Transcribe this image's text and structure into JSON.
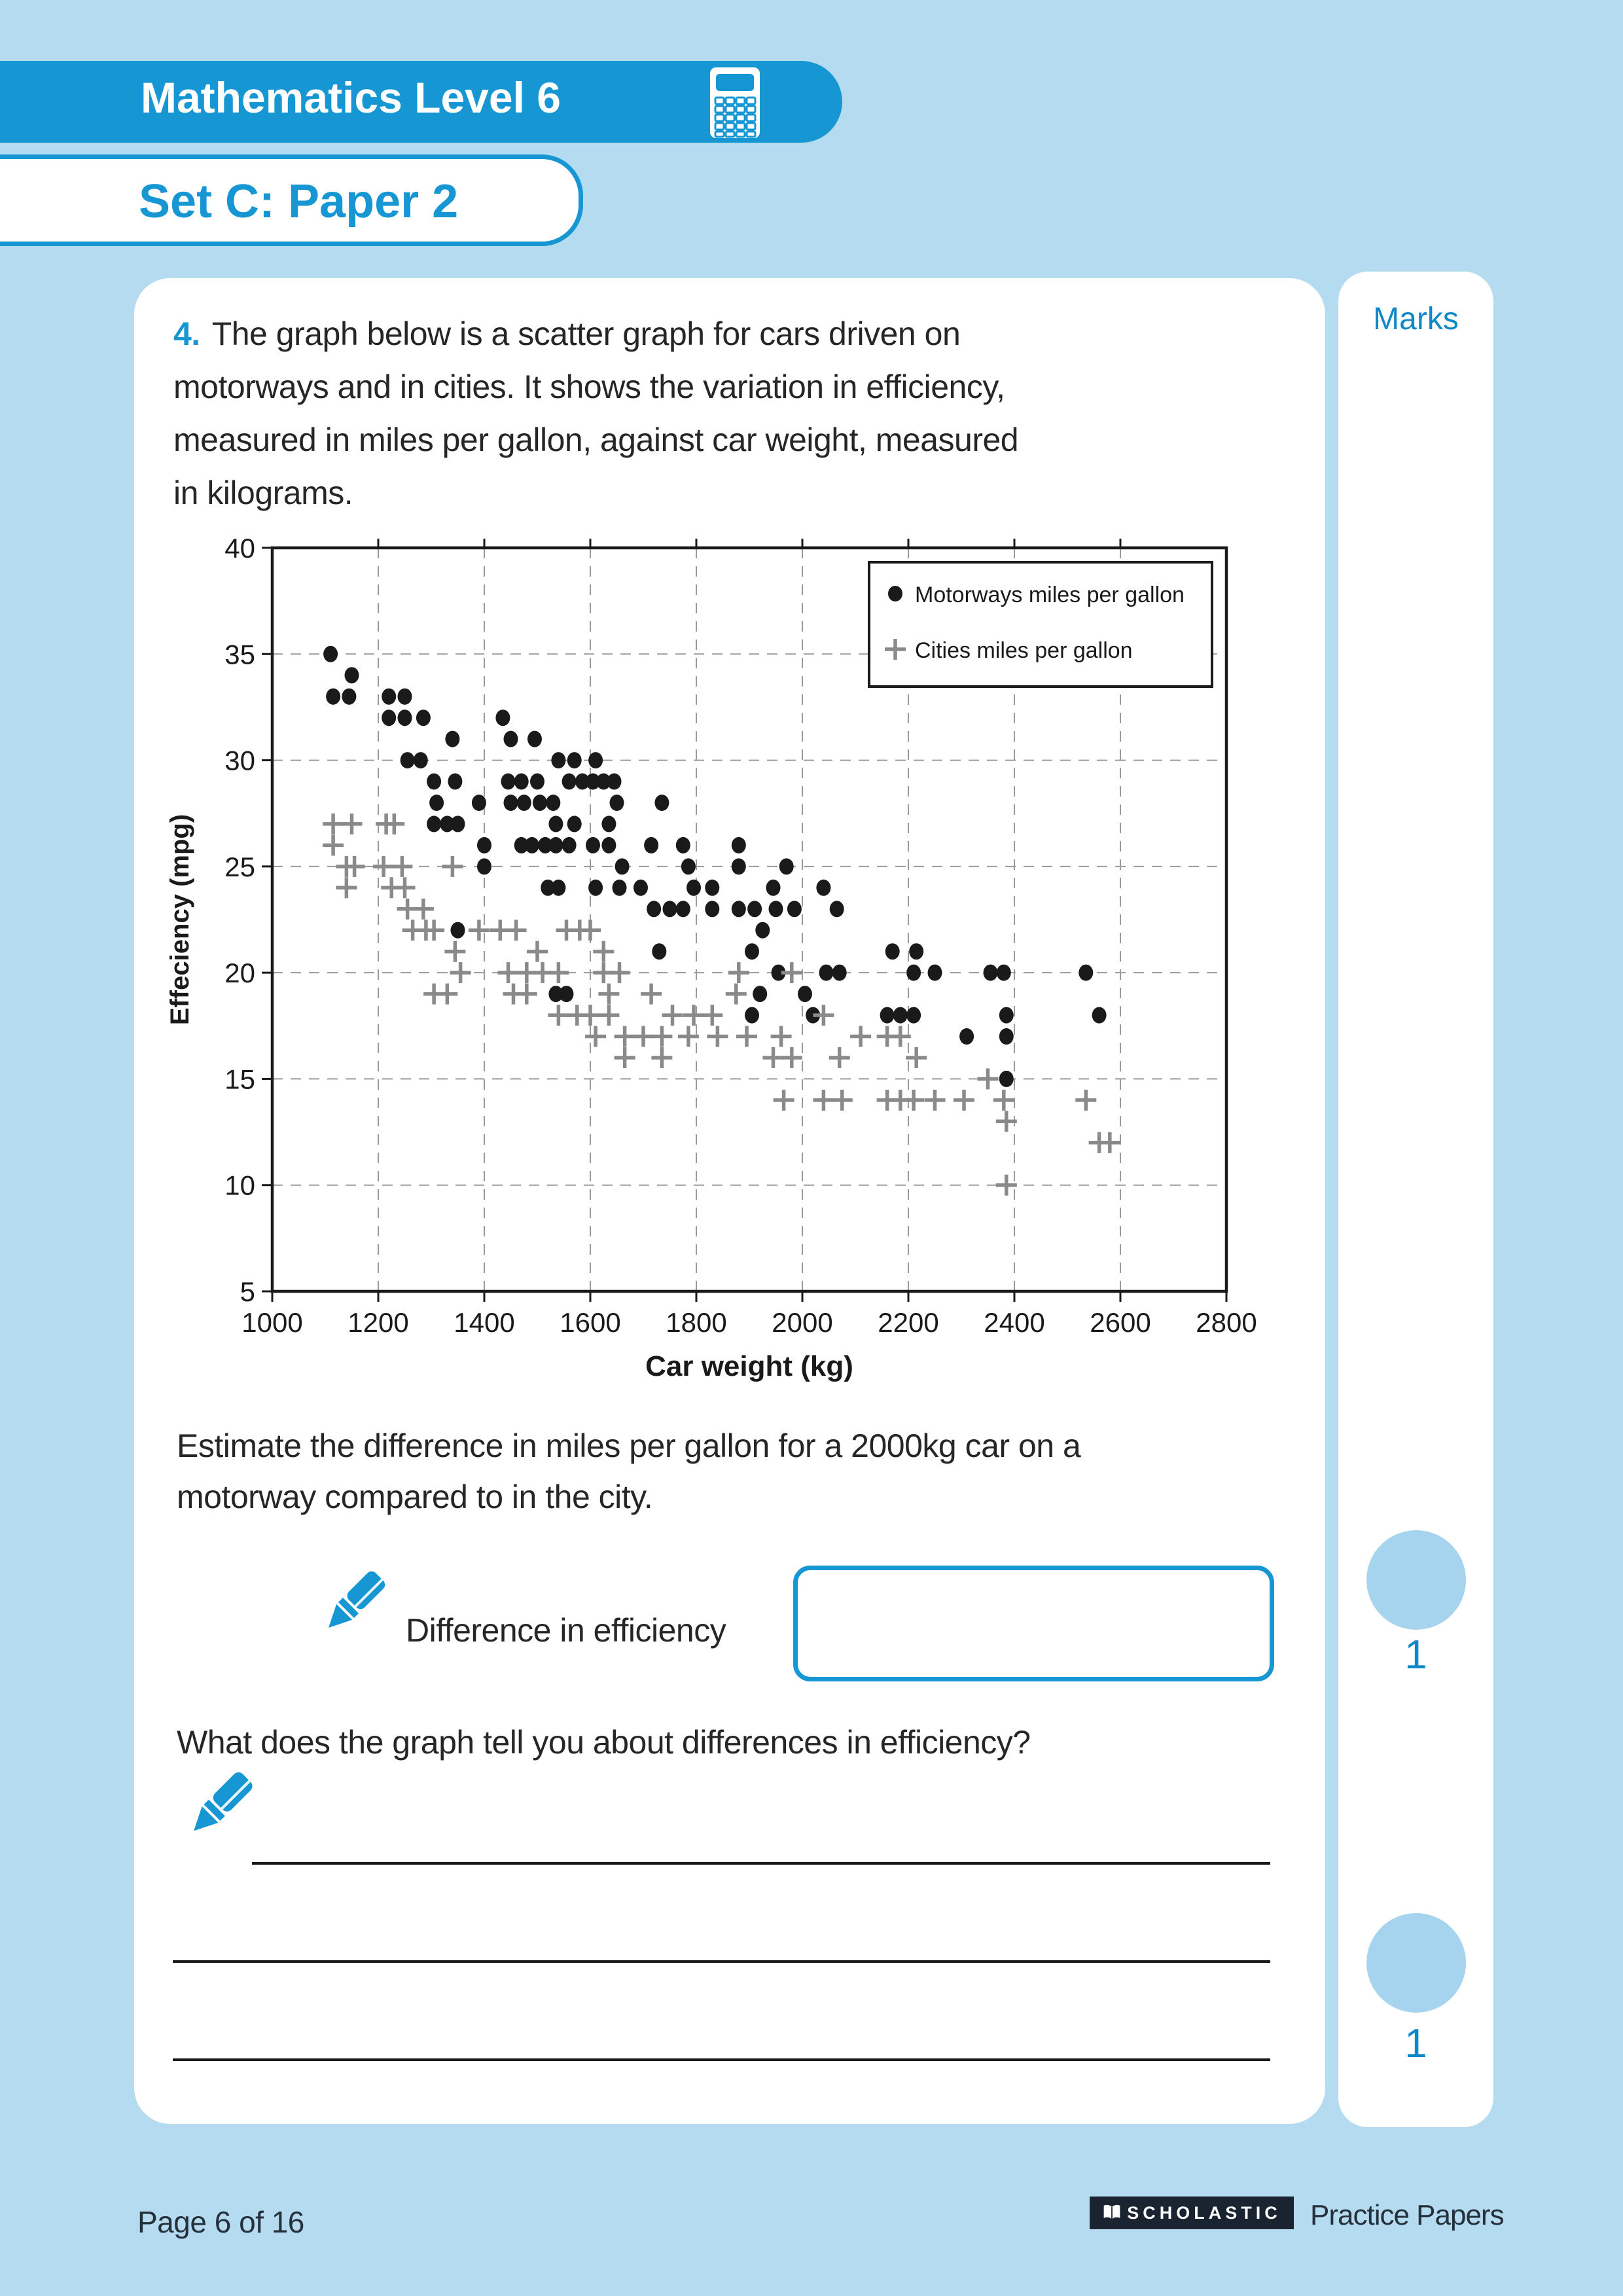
{
  "header": {
    "title": "Mathematics Level 6",
    "subtitle": "Set C: Paper 2"
  },
  "marks": {
    "title": "Marks",
    "items": [
      "1",
      "1"
    ]
  },
  "question": {
    "number": "4.",
    "lines": [
      "The graph below is a scatter graph for cars driven on",
      "motorways and in cities. It shows the variation in efficiency,",
      "measured in miles per gallon, against car weight, measured",
      "in kilograms."
    ]
  },
  "estimate": {
    "lines": [
      "Estimate the difference in miles per gallon for a 2000kg car on a",
      "motorway compared to in the city."
    ]
  },
  "answer": {
    "label": "Difference in efficiency"
  },
  "followup": {
    "text": "What does the graph tell you about differences in efficiency?"
  },
  "footer": {
    "page": "Page 6 of 16",
    "logo": "SCHOLASTIC",
    "series": "Practice Papers"
  },
  "colors": {
    "accent": "#1697d4",
    "marks_blue": "#0f88c8",
    "background": "#b5dbf0",
    "dot": "#1a1a1a",
    "plus": "#8a8a8a",
    "circle_fill": "#a6d3ee"
  },
  "icons": [
    "calculator-icon",
    "pencil-icon",
    "pencil-icon",
    "open-book-icon"
  ],
  "chart_data": {
    "type": "scatter",
    "title": "",
    "xlabel": "Car weight (kg)",
    "ylabel": "Effeciency (mpg)",
    "xlim": [
      1000,
      2800
    ],
    "ylim": [
      5,
      40
    ],
    "xticks": [
      1000,
      1200,
      1400,
      1600,
      1800,
      2000,
      2200,
      2400,
      2600,
      2800
    ],
    "yticks": [
      5,
      10,
      15,
      20,
      25,
      30,
      35,
      40
    ],
    "grid": true,
    "legend_position": "top-right",
    "series": [
      {
        "name": "Motorways miles per gallon",
        "marker": "dot",
        "color": "#1a1a1a",
        "points": [
          [
            1110,
            35
          ],
          [
            1150,
            34
          ],
          [
            1115,
            33
          ],
          [
            1145,
            33
          ],
          [
            1220,
            33
          ],
          [
            1250,
            33
          ],
          [
            1220,
            32
          ],
          [
            1250,
            32
          ],
          [
            1285,
            32
          ],
          [
            1435,
            32
          ],
          [
            1340,
            31
          ],
          [
            1450,
            31
          ],
          [
            1495,
            31
          ],
          [
            1255,
            30
          ],
          [
            1280,
            30
          ],
          [
            1540,
            30
          ],
          [
            1570,
            30
          ],
          [
            1610,
            30
          ],
          [
            1305,
            29
          ],
          [
            1345,
            29
          ],
          [
            1445,
            29
          ],
          [
            1470,
            29
          ],
          [
            1500,
            29
          ],
          [
            1560,
            29
          ],
          [
            1585,
            29
          ],
          [
            1605,
            29
          ],
          [
            1625,
            29
          ],
          [
            1645,
            29
          ],
          [
            1310,
            28
          ],
          [
            1390,
            28
          ],
          [
            1450,
            28
          ],
          [
            1475,
            28
          ],
          [
            1505,
            28
          ],
          [
            1530,
            28
          ],
          [
            1650,
            28
          ],
          [
            1735,
            28
          ],
          [
            1305,
            27
          ],
          [
            1330,
            27
          ],
          [
            1350,
            27
          ],
          [
            1535,
            27
          ],
          [
            1570,
            27
          ],
          [
            1635,
            27
          ],
          [
            1400,
            26
          ],
          [
            1470,
            26
          ],
          [
            1490,
            26
          ],
          [
            1515,
            26
          ],
          [
            1535,
            26
          ],
          [
            1560,
            26
          ],
          [
            1605,
            26
          ],
          [
            1635,
            26
          ],
          [
            1715,
            26
          ],
          [
            1775,
            26
          ],
          [
            1880,
            26
          ],
          [
            1400,
            25
          ],
          [
            1660,
            25
          ],
          [
            1785,
            25
          ],
          [
            1880,
            25
          ],
          [
            1970,
            25
          ],
          [
            1520,
            24
          ],
          [
            1540,
            24
          ],
          [
            1610,
            24
          ],
          [
            1655,
            24
          ],
          [
            1695,
            24
          ],
          [
            1795,
            24
          ],
          [
            1830,
            24
          ],
          [
            1945,
            24
          ],
          [
            2040,
            24
          ],
          [
            1720,
            23
          ],
          [
            1750,
            23
          ],
          [
            1775,
            23
          ],
          [
            1830,
            23
          ],
          [
            1880,
            23
          ],
          [
            1910,
            23
          ],
          [
            1950,
            23
          ],
          [
            1985,
            23
          ],
          [
            2065,
            23
          ],
          [
            1350,
            22
          ],
          [
            1925,
            22
          ],
          [
            1730,
            21
          ],
          [
            1905,
            21
          ],
          [
            2170,
            21
          ],
          [
            2215,
            21
          ],
          [
            1955,
            20
          ],
          [
            2045,
            20
          ],
          [
            2070,
            20
          ],
          [
            2210,
            20
          ],
          [
            2250,
            20
          ],
          [
            2355,
            20
          ],
          [
            2380,
            20
          ],
          [
            2535,
            20
          ],
          [
            1535,
            19
          ],
          [
            1555,
            19
          ],
          [
            1920,
            19
          ],
          [
            2005,
            19
          ],
          [
            1905,
            18
          ],
          [
            2020,
            18
          ],
          [
            2160,
            18
          ],
          [
            2185,
            18
          ],
          [
            2210,
            18
          ],
          [
            2385,
            18
          ],
          [
            2560,
            18
          ],
          [
            2310,
            17
          ],
          [
            2385,
            17
          ],
          [
            2385,
            15
          ]
        ]
      },
      {
        "name": "Cities miles per gallon",
        "marker": "plus",
        "color": "#8a8a8a",
        "points": [
          [
            1115,
            27
          ],
          [
            1150,
            27
          ],
          [
            1215,
            27
          ],
          [
            1230,
            27
          ],
          [
            1115,
            26
          ],
          [
            1140,
            25
          ],
          [
            1155,
            25
          ],
          [
            1210,
            25
          ],
          [
            1245,
            25
          ],
          [
            1340,
            25
          ],
          [
            1140,
            24
          ],
          [
            1225,
            24
          ],
          [
            1250,
            24
          ],
          [
            1255,
            23
          ],
          [
            1285,
            23
          ],
          [
            1265,
            22
          ],
          [
            1290,
            22
          ],
          [
            1305,
            22
          ],
          [
            1390,
            22
          ],
          [
            1430,
            22
          ],
          [
            1460,
            22
          ],
          [
            1555,
            22
          ],
          [
            1580,
            22
          ],
          [
            1600,
            22
          ],
          [
            1345,
            21
          ],
          [
            1500,
            21
          ],
          [
            1625,
            21
          ],
          [
            1355,
            20
          ],
          [
            1445,
            20
          ],
          [
            1480,
            20
          ],
          [
            1510,
            20
          ],
          [
            1540,
            20
          ],
          [
            1625,
            20
          ],
          [
            1655,
            20
          ],
          [
            1880,
            20
          ],
          [
            1980,
            20
          ],
          [
            1305,
            19
          ],
          [
            1330,
            19
          ],
          [
            1455,
            19
          ],
          [
            1480,
            19
          ],
          [
            1635,
            19
          ],
          [
            1715,
            19
          ],
          [
            1875,
            19
          ],
          [
            1540,
            18
          ],
          [
            1575,
            18
          ],
          [
            1600,
            18
          ],
          [
            1635,
            18
          ],
          [
            1755,
            18
          ],
          [
            1795,
            18
          ],
          [
            1830,
            18
          ],
          [
            2040,
            18
          ],
          [
            1610,
            17
          ],
          [
            1665,
            17
          ],
          [
            1700,
            17
          ],
          [
            1735,
            17
          ],
          [
            1785,
            17
          ],
          [
            1840,
            17
          ],
          [
            1895,
            17
          ],
          [
            1960,
            17
          ],
          [
            2110,
            17
          ],
          [
            2160,
            17
          ],
          [
            2185,
            17
          ],
          [
            1665,
            16
          ],
          [
            1735,
            16
          ],
          [
            1945,
            16
          ],
          [
            1980,
            16
          ],
          [
            2070,
            16
          ],
          [
            2215,
            16
          ],
          [
            2350,
            15
          ],
          [
            1965,
            14
          ],
          [
            2040,
            14
          ],
          [
            2075,
            14
          ],
          [
            2160,
            14
          ],
          [
            2185,
            14
          ],
          [
            2210,
            14
          ],
          [
            2250,
            14
          ],
          [
            2305,
            14
          ],
          [
            2380,
            14
          ],
          [
            2535,
            14
          ],
          [
            2385,
            13
          ],
          [
            2560,
            12
          ],
          [
            2580,
            12
          ],
          [
            2385,
            10
          ]
        ]
      }
    ]
  }
}
